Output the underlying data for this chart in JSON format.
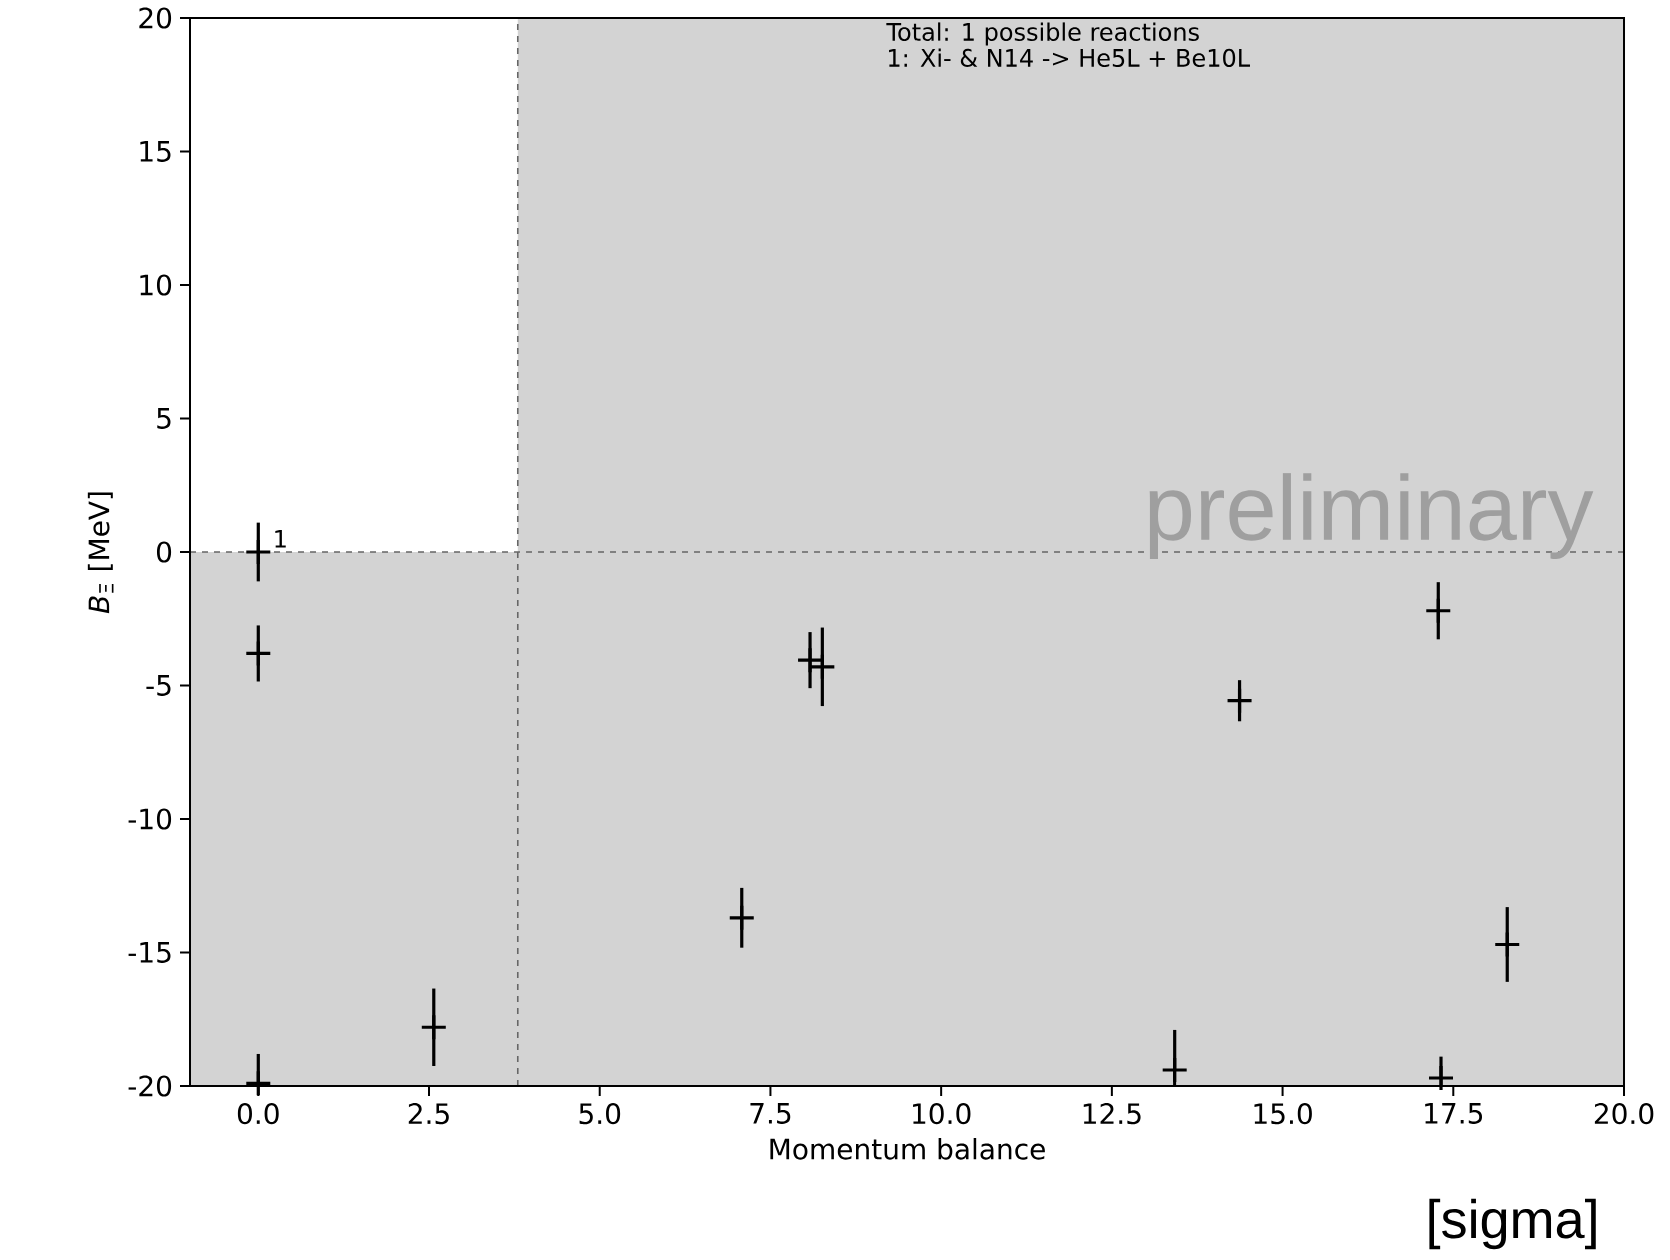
{
  "chart_data": {
    "type": "scatter",
    "xlabel": "Momentum balance",
    "ylabel": "*B*$_{Ξ}$ [MeV]",
    "xlim": [
      -1,
      20
    ],
    "ylim": [
      -20,
      20
    ],
    "xticks": [
      {
        "value": 0,
        "label": "0.0"
      },
      {
        "value": 2.5,
        "label": "2.5"
      },
      {
        "value": 5,
        "label": "5.0"
      },
      {
        "value": 7.5,
        "label": "7.5"
      },
      {
        "value": 10,
        "label": "10.0"
      },
      {
        "value": 12.5,
        "label": "12.5"
      },
      {
        "value": 15,
        "label": "15.0"
      },
      {
        "value": 17.5,
        "label": "17.5"
      },
      {
        "value": 20,
        "label": "20.0"
      }
    ],
    "yticks": [
      -20,
      -15,
      -10,
      -5,
      0,
      5,
      10,
      15,
      20
    ],
    "series": [
      {
        "color": "#000000",
        "x": [
          0,
          0,
          0,
          2.57,
          7.08,
          8.08,
          8.26,
          13.42,
          14.37,
          17.28,
          17.32,
          18.29
        ],
        "values": [
          0,
          -3.8,
          -19.9,
          -17.8,
          -13.7,
          -4.05,
          -4.3,
          -19.4,
          -5.57,
          -2.2,
          -19.7,
          -14.7
        ],
        "errors": [
          1.1,
          1.05,
          [
            -20,
            -18.8
          ],
          1.45,
          1.12,
          1.05,
          1.47,
          [
            -20,
            -17.9
          ],
          0.77,
          1.07,
          [
            -20,
            -18.9
          ],
          1.4
        ]
      }
    ],
    "marker": "cross",
    "ref_lines": [
      {
        "axis": "x",
        "value": 3.8,
        "color": "#666666",
        "line_style": "dashed"
      },
      {
        "axis": "y",
        "value": 0,
        "color": "#666666",
        "line_style": "dashed"
      }
    ],
    "bands": [
      {
        "axis": "x",
        "from": 3.8,
        "to": 20,
        "color": "#d3d3d3"
      },
      {
        "axis": "y",
        "from": -20,
        "to": 0,
        "color": "#d3d3d3"
      }
    ],
    "annotations": [
      "Total: 1 possible reactions",
      "1: Xi- & N14 -> He5L + Be10L",
      "preliminary",
      "[sigma]",
      {
        "text": "1",
        "x": 0,
        "y": 0
      }
    ]
  }
}
